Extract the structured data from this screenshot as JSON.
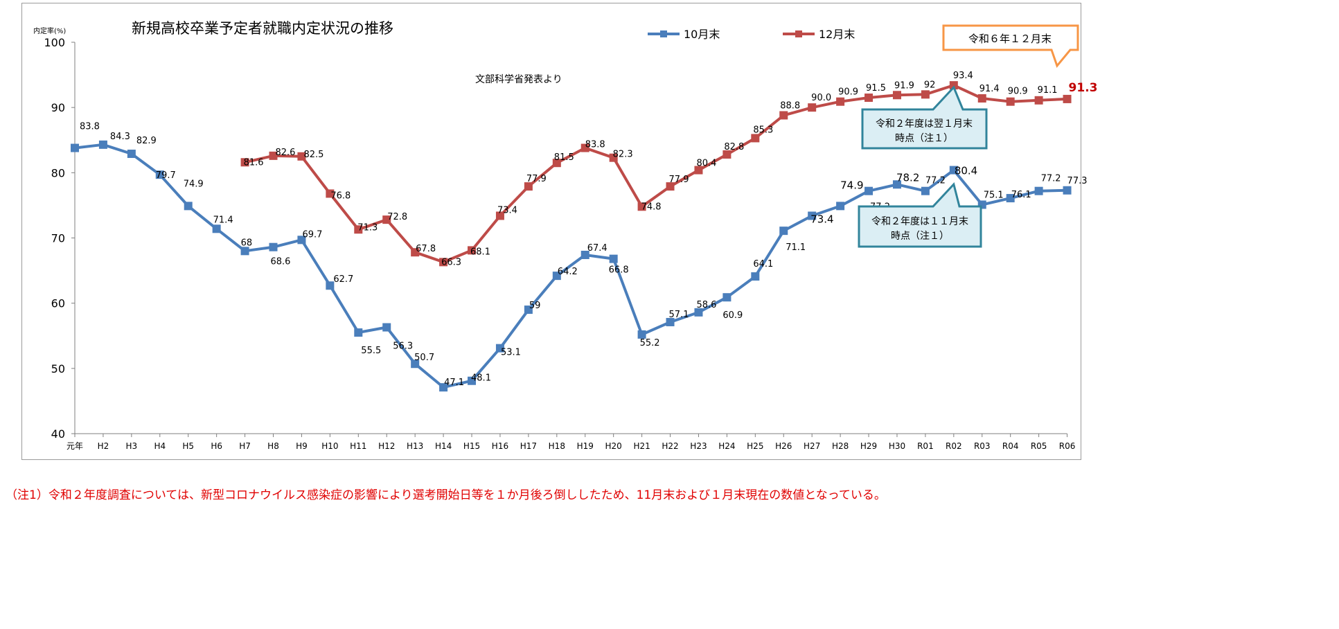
{
  "chart_data": {
    "type": "line",
    "title": "新規高校卒業予定者就職内定状況の推移",
    "subtitle": "文部科学省発表より",
    "ylabel": "内定率(%)",
    "xlabel": "",
    "ylim": [
      40,
      100
    ],
    "yticks": [
      "40",
      "50",
      "60",
      "70",
      "80",
      "90",
      "100"
    ],
    "grid": false,
    "legend_position": "top",
    "categories": [
      "元年",
      "H2",
      "H3",
      "H4",
      "H5",
      "H6",
      "H7",
      "H8",
      "H9",
      "H10",
      "H11",
      "H12",
      "H13",
      "H14",
      "H15",
      "H16",
      "H17",
      "H18",
      "H19",
      "H20",
      "H21",
      "H22",
      "H23",
      "H24",
      "H25",
      "H26",
      "H27",
      "H28",
      "H29",
      "H30",
      "R01",
      "R02",
      "R03",
      "R04",
      "R05",
      "R06"
    ],
    "series": [
      {
        "name": "10月末",
        "color": "#4a7ebb",
        "values": [
          83.8,
          84.3,
          82.9,
          79.7,
          74.9,
          71.4,
          68,
          68.6,
          69.7,
          62.7,
          55.5,
          56.3,
          50.7,
          47.1,
          48.1,
          53.1,
          59,
          64.2,
          67.4,
          66.8,
          55.2,
          57.1,
          58.6,
          60.9,
          64.1,
          71.1,
          73.4,
          74.9,
          77.2,
          78.2,
          77.2,
          80.4,
          75.1,
          76.1,
          77.2,
          77.3
        ],
        "labels": [
          "83.8",
          "84.3",
          "82.9",
          "79.7",
          "74.9",
          "71.4",
          "68",
          "68.6",
          "69.7",
          "62.7",
          "55.5",
          "56.3",
          "50.7",
          "47.1",
          "48.1",
          "53.1",
          "59",
          "64.2",
          "67.4",
          "66.8",
          "55.2",
          "57.1",
          "58.6",
          "60.9",
          "64.1",
          "71.1",
          "73.4",
          "74.9",
          "77.2",
          "78.2",
          "77.2",
          "80.4",
          "75.1",
          "76.1",
          "77.2",
          "77.3"
        ]
      },
      {
        "name": "12月末",
        "color": "#be4b48",
        "values": [
          null,
          null,
          null,
          null,
          null,
          null,
          81.6,
          82.6,
          82.5,
          76.8,
          71.3,
          72.8,
          67.8,
          66.3,
          68.1,
          73.4,
          77.9,
          81.5,
          83.8,
          82.3,
          74.8,
          77.9,
          80.4,
          82.8,
          85.3,
          88.8,
          90.0,
          90.9,
          91.5,
          91.9,
          92,
          93.4,
          91.4,
          90.9,
          91.1,
          91.3
        ],
        "labels": [
          "",
          "",
          "",
          "",
          "",
          "",
          "81.6",
          "82.6",
          "82.5",
          "76.8",
          "71.3",
          "72.8",
          "67.8",
          "66.3",
          "68.1",
          "73.4",
          "77.9",
          "81.5",
          "83.8",
          "82.3",
          "74.8",
          "77.9",
          "80.4",
          "82.8",
          "85.3",
          "88.8",
          "90.0",
          "90.9",
          "91.5",
          "91.9",
          "92",
          "93.4",
          "91.4",
          "90.9",
          "91.1",
          "91.3"
        ]
      }
    ],
    "callouts": [
      {
        "text": "令和６年１２月末"
      },
      {
        "text_line1": "令和２年度は翌１月末",
        "text_line2": "時点（注１）"
      },
      {
        "text_line1": "令和２年度は１１月末",
        "text_line2": "時点（注１）"
      }
    ]
  },
  "colors": {
    "callout_orange": "#f79646",
    "callout_teal_border": "#31849b",
    "callout_teal_fill": "#dbeef4",
    "highlight_red": "#c00000",
    "note_red": "#e00000"
  },
  "note": "（注1）令和２年度調査については、新型コロナウイルス感染症の影響により選考開始日等を１か月後ろ倒ししたため、11月末および１月末現在の数値となっている。"
}
